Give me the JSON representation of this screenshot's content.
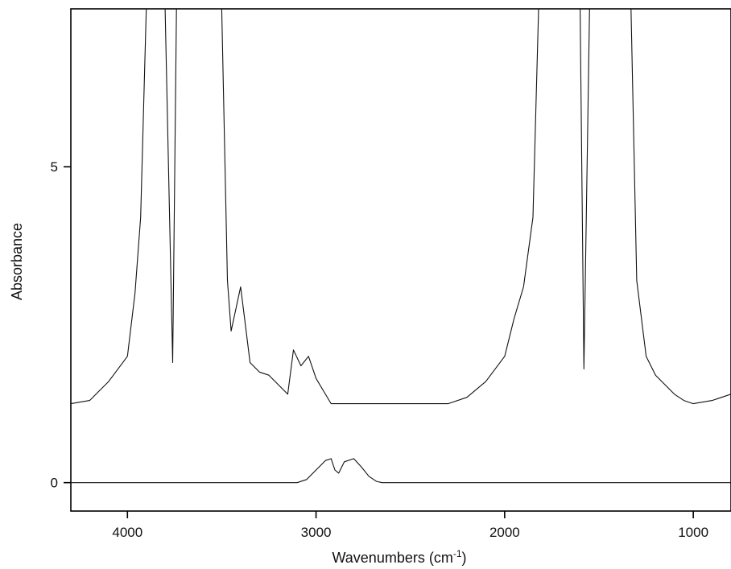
{
  "chart_data": {
    "type": "line",
    "title": "",
    "xlabel": "Wavenumbers (cm",
    "xlabel_superscript": "-1",
    "xlabel_close": ")",
    "ylabel": "Absorbance",
    "xlim": [
      4300,
      800
    ],
    "ylim": [
      -0.45,
      7.5
    ],
    "x_reversed": true,
    "x_ticks": [
      4000,
      3000,
      2000,
      1000
    ],
    "x_tick_labels": [
      "4000",
      "3000",
      "2000",
      "1000"
    ],
    "y_ticks": [
      0,
      5
    ],
    "y_tick_labels": [
      "0",
      "5"
    ],
    "grid": false,
    "legend": "none",
    "line_color": "#111111",
    "series": [
      {
        "role": "upper-trace",
        "baseline": 1.25,
        "points": [
          [
            4300,
            1.25
          ],
          [
            4200,
            1.3
          ],
          [
            4150,
            1.45
          ],
          [
            4100,
            1.6
          ],
          [
            4050,
            1.8
          ],
          [
            4000,
            2.0
          ],
          [
            3960,
            3.0
          ],
          [
            3930,
            4.2
          ],
          [
            3900,
            7.5
          ],
          [
            3850,
            7.5
          ],
          [
            3800,
            7.5
          ],
          [
            3760,
            1.9
          ],
          [
            3740,
            7.5
          ],
          [
            3700,
            7.5
          ],
          [
            3650,
            7.5
          ],
          [
            3600,
            7.5
          ],
          [
            3550,
            7.5
          ],
          [
            3500,
            7.5
          ],
          [
            3470,
            3.2
          ],
          [
            3450,
            2.4
          ],
          [
            3400,
            3.1
          ],
          [
            3350,
            1.9
          ],
          [
            3300,
            1.75
          ],
          [
            3250,
            1.7
          ],
          [
            3200,
            1.55
          ],
          [
            3150,
            1.4
          ],
          [
            3120,
            2.1
          ],
          [
            3080,
            1.85
          ],
          [
            3040,
            2.0
          ],
          [
            3000,
            1.65
          ],
          [
            2960,
            1.45
          ],
          [
            2920,
            1.25
          ],
          [
            2800,
            1.25
          ],
          [
            2500,
            1.25
          ],
          [
            2300,
            1.25
          ],
          [
            2200,
            1.35
          ],
          [
            2100,
            1.6
          ],
          [
            2000,
            2.0
          ],
          [
            1950,
            2.6
          ],
          [
            1900,
            3.1
          ],
          [
            1850,
            4.2
          ],
          [
            1820,
            7.5
          ],
          [
            1780,
            7.5
          ],
          [
            1740,
            7.5
          ],
          [
            1700,
            7.5
          ],
          [
            1650,
            7.5
          ],
          [
            1600,
            7.5
          ],
          [
            1580,
            1.8
          ],
          [
            1550,
            7.5
          ],
          [
            1500,
            7.5
          ],
          [
            1470,
            7.5
          ],
          [
            1440,
            7.5
          ],
          [
            1400,
            7.5
          ],
          [
            1370,
            7.5
          ],
          [
            1330,
            7.5
          ],
          [
            1300,
            3.2
          ],
          [
            1250,
            2.0
          ],
          [
            1200,
            1.7
          ],
          [
            1150,
            1.55
          ],
          [
            1100,
            1.4
          ],
          [
            1050,
            1.3
          ],
          [
            1000,
            1.25
          ],
          [
            900,
            1.3
          ],
          [
            850,
            1.35
          ],
          [
            800,
            1.4
          ]
        ]
      },
      {
        "role": "lower-trace",
        "baseline": 0,
        "points": [
          [
            4300,
            0
          ],
          [
            3100,
            0
          ],
          [
            3050,
            0.05
          ],
          [
            3000,
            0.2
          ],
          [
            2950,
            0.35
          ],
          [
            2920,
            0.38
          ],
          [
            2900,
            0.2
          ],
          [
            2880,
            0.15
          ],
          [
            2850,
            0.33
          ],
          [
            2800,
            0.38
          ],
          [
            2760,
            0.25
          ],
          [
            2720,
            0.1
          ],
          [
            2680,
            0.02
          ],
          [
            2650,
            0
          ],
          [
            800,
            0
          ]
        ]
      }
    ]
  }
}
